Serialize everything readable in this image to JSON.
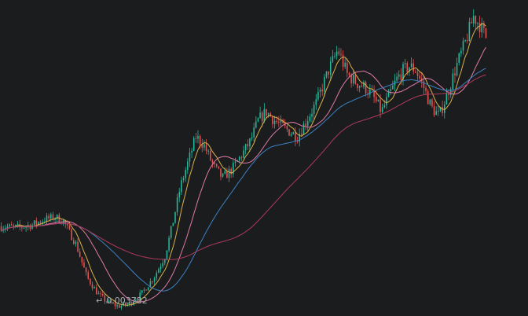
{
  "colors": {
    "background": "#1b1c1e",
    "up": "#26b89a",
    "down": "#e05555",
    "ma_short": "#d8b14a",
    "ma_mid": "#e07aa6",
    "ma_long": "#3b82c4",
    "ma_longest": "#b03a5b",
    "low_label": "#a9acb1"
  },
  "low_marker": {
    "icon": "low-price-arrow-icon",
    "label": "0.003782",
    "value": 0.003782
  },
  "chart_data": {
    "type": "candlestick",
    "title": "",
    "xlabel": "",
    "ylabel": "",
    "grid": false,
    "legend": "none",
    "ylim": [
      0.003741,
      0.011185
    ],
    "low_value": 0.003782,
    "candle_count": 235,
    "path_anchors": [
      [
        0,
        0.00583
      ],
      [
        10,
        0.0058
      ],
      [
        20,
        0.00587
      ],
      [
        28,
        0.006
      ],
      [
        35,
        0.00605
      ],
      [
        40,
        0.00595
      ],
      [
        48,
        0.0054
      ],
      [
        55,
        0.0046
      ],
      [
        62,
        0.0042
      ],
      [
        68,
        0.004
      ],
      [
        75,
        0.0039
      ],
      [
        82,
        0.00395
      ],
      [
        90,
        0.0042
      ],
      [
        98,
        0.0046
      ],
      [
        105,
        0.0051
      ],
      [
        110,
        0.0059
      ],
      [
        115,
        0.0068
      ],
      [
        120,
        0.0074
      ],
      [
        125,
        0.008
      ],
      [
        130,
        0.0078
      ],
      [
        136,
        0.0073
      ],
      [
        142,
        0.007
      ],
      [
        148,
        0.0072
      ],
      [
        155,
        0.0076
      ],
      [
        160,
        0.0079
      ],
      [
        165,
        0.0084
      ],
      [
        170,
        0.0086
      ],
      [
        175,
        0.0084
      ],
      [
        182,
        0.0082
      ],
      [
        190,
        0.008
      ],
      [
        196,
        0.0084
      ],
      [
        202,
        0.0088
      ],
      [
        210,
        0.0096
      ],
      [
        216,
        0.0101
      ],
      [
        222,
        0.0095
      ],
      [
        228,
        0.0093
      ],
      [
        233,
        0.0092
      ],
      [
        238,
        0.009
      ],
      [
        244,
        0.0086
      ],
      [
        249,
        0.009
      ],
      [
        254,
        0.0094
      ],
      [
        258,
        0.0096
      ],
      [
        262,
        0.0097
      ],
      [
        266,
        0.0096
      ],
      [
        271,
        0.0092
      ],
      [
        276,
        0.0087
      ],
      [
        281,
        0.0085
      ],
      [
        286,
        0.009
      ],
      [
        292,
        0.0097
      ],
      [
        298,
        0.0103
      ],
      [
        303,
        0.0109
      ],
      [
        307,
        0.0107
      ],
      [
        311,
        0.0104
      ]
    ],
    "moving_averages": [
      {
        "period": 7,
        "color_key": "ma_short"
      },
      {
        "period": 20,
        "color_key": "ma_mid"
      },
      {
        "period": 40,
        "color_key": "ma_long"
      },
      {
        "period": 80,
        "color_key": "ma_longest"
      }
    ]
  }
}
